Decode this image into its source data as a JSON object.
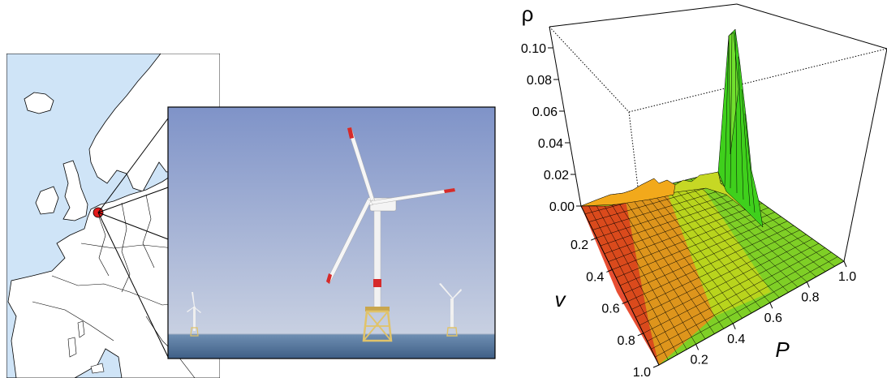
{
  "map": {
    "site_marker_color": "#e21b1b",
    "sea_color": "#cfe4f7",
    "land_color": "#ffffff"
  },
  "photo": {
    "sky_top": "#7f93c8",
    "sky_bottom": "#c6cfe0",
    "sea_color": "#5b7ea3",
    "tower_color": "#f2f2f2",
    "band_color": "#d62a2a",
    "jacket_color": "#e0c36a"
  },
  "plot3d": {
    "z_label": "ρ",
    "v_label": "v",
    "p_label": "P",
    "z_ticks": [
      "0.00",
      "0.02",
      "0.04",
      "0.06",
      "0.08",
      "0.10"
    ],
    "v_ticks": [
      "0.2",
      "0.4",
      "0.6",
      "0.8",
      "1.0"
    ],
    "p_ticks": [
      "0.2",
      "0.4",
      "0.6",
      "0.8",
      "1.0"
    ],
    "surface_low_color": "#e02020",
    "surface_mid_color": "#f4d21c",
    "surface_high_color": "#2fc81b"
  }
}
